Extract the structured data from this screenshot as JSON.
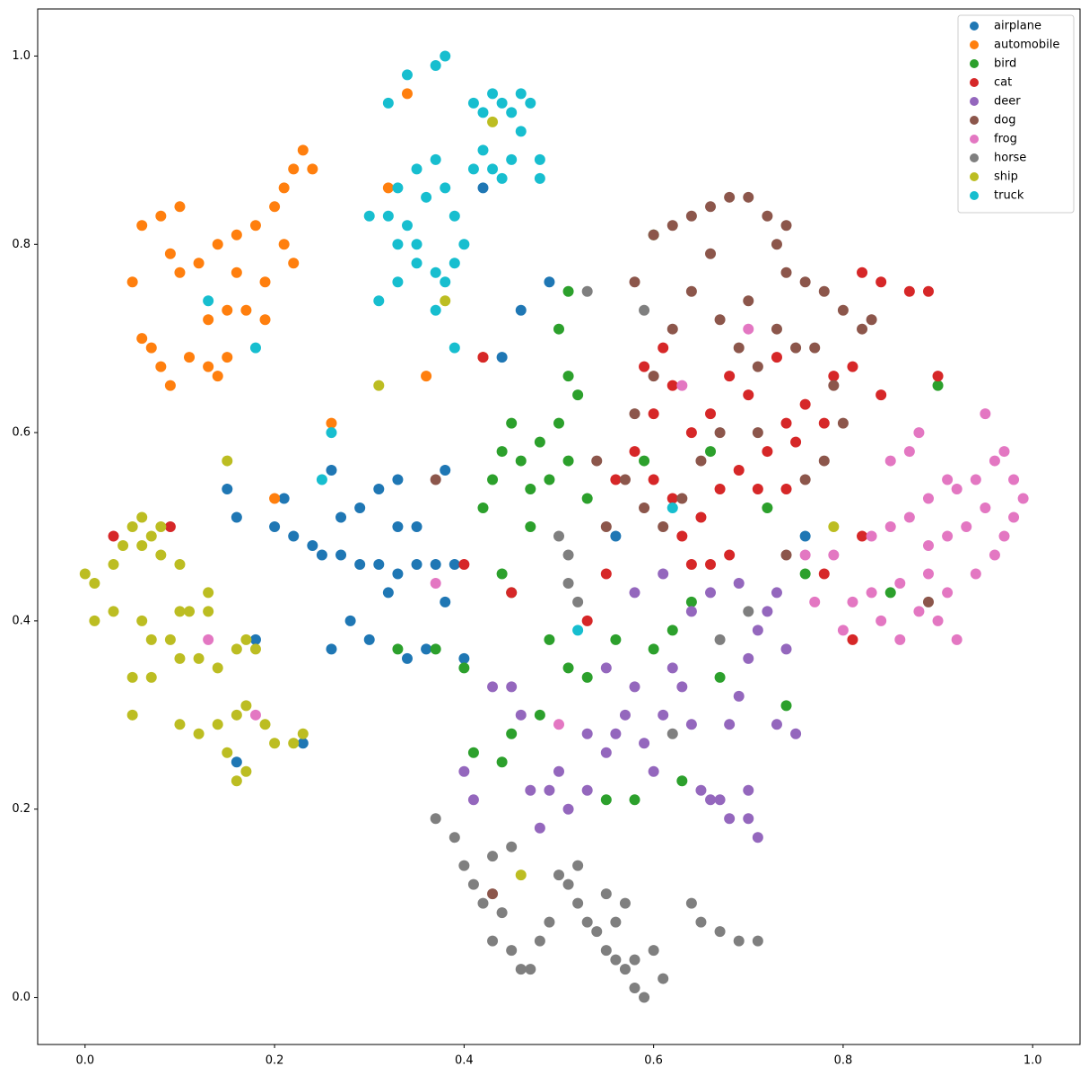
{
  "chart_data": {
    "type": "scatter",
    "xlim": [
      -0.05,
      1.05
    ],
    "ylim": [
      -0.05,
      1.05
    ],
    "xticks": [
      {
        "value": 0,
        "label": "0.0"
      },
      0.2,
      0.4,
      0.6,
      0.8,
      {
        "value": 1,
        "label": "1.0"
      }
    ],
    "yticks": [
      {
        "value": 0,
        "label": "0.0"
      },
      0.2,
      0.4,
      0.6,
      0.8,
      {
        "value": 1,
        "label": "1.0"
      }
    ],
    "legend": "upper right",
    "series": [
      {
        "name": "airplane",
        "color": "#1f77b4",
        "x": [
          0.2,
          0.22,
          0.24,
          0.25,
          0.27,
          0.29,
          0.31,
          0.33,
          0.35,
          0.37,
          0.39,
          0.27,
          0.29,
          0.31,
          0.33,
          0.26,
          0.28,
          0.3,
          0.26,
          0.32,
          0.34,
          0.36,
          0.38,
          0.4,
          0.15,
          0.16,
          0.21,
          0.33,
          0.35,
          0.44,
          0.46,
          0.49,
          0.56,
          0.42,
          0.76,
          0.16,
          0.23,
          0.38,
          0.18
        ],
        "y": [
          0.5,
          0.49,
          0.48,
          0.47,
          0.47,
          0.46,
          0.46,
          0.45,
          0.46,
          0.46,
          0.46,
          0.51,
          0.52,
          0.54,
          0.55,
          0.56,
          0.4,
          0.38,
          0.37,
          0.43,
          0.36,
          0.37,
          0.42,
          0.36,
          0.54,
          0.51,
          0.53,
          0.5,
          0.5,
          0.68,
          0.73,
          0.76,
          0.49,
          0.86,
          0.49,
          0.25,
          0.27,
          0.56,
          0.38
        ]
      },
      {
        "name": "automobile",
        "color": "#ff7f0e",
        "x": [
          0.05,
          0.06,
          0.08,
          0.1,
          0.09,
          0.1,
          0.12,
          0.06,
          0.07,
          0.08,
          0.09,
          0.11,
          0.13,
          0.14,
          0.15,
          0.13,
          0.15,
          0.17,
          0.19,
          0.14,
          0.16,
          0.18,
          0.2,
          0.21,
          0.22,
          0.21,
          0.22,
          0.23,
          0.24,
          0.19,
          0.16,
          0.34,
          0.32,
          0.36,
          0.26,
          0.42,
          0.2
        ],
        "y": [
          0.76,
          0.82,
          0.83,
          0.84,
          0.79,
          0.77,
          0.78,
          0.7,
          0.69,
          0.67,
          0.65,
          0.68,
          0.67,
          0.66,
          0.68,
          0.72,
          0.73,
          0.73,
          0.72,
          0.8,
          0.81,
          0.82,
          0.84,
          0.8,
          0.78,
          0.86,
          0.88,
          0.9,
          0.88,
          0.76,
          0.77,
          0.96,
          0.86,
          0.66,
          0.61,
          0.68,
          0.53
        ]
      },
      {
        "name": "bird",
        "color": "#2ca02c",
        "x": [
          0.42,
          0.43,
          0.44,
          0.45,
          0.46,
          0.47,
          0.48,
          0.49,
          0.5,
          0.51,
          0.52,
          0.51,
          0.5,
          0.51,
          0.44,
          0.45,
          0.47,
          0.49,
          0.51,
          0.53,
          0.4,
          0.41,
          0.44,
          0.45,
          0.48,
          0.56,
          0.6,
          0.62,
          0.64,
          0.63,
          0.58,
          0.55,
          0.33,
          0.37,
          0.67,
          0.72,
          0.76,
          0.9,
          0.85,
          0.53,
          0.59,
          0.66,
          0.74,
          0.6
        ],
        "y": [
          0.52,
          0.55,
          0.58,
          0.61,
          0.57,
          0.54,
          0.59,
          0.55,
          0.61,
          0.57,
          0.64,
          0.66,
          0.71,
          0.75,
          0.45,
          0.43,
          0.5,
          0.38,
          0.35,
          0.34,
          0.35,
          0.26,
          0.25,
          0.28,
          0.3,
          0.38,
          0.37,
          0.39,
          0.42,
          0.23,
          0.21,
          0.21,
          0.37,
          0.37,
          0.34,
          0.52,
          0.45,
          0.65,
          0.43,
          0.53,
          0.57,
          0.58,
          0.31,
          0.81
        ]
      },
      {
        "name": "cat",
        "color": "#d62728",
        "x": [
          0.56,
          0.58,
          0.6,
          0.62,
          0.63,
          0.64,
          0.66,
          0.68,
          0.65,
          0.67,
          0.69,
          0.71,
          0.72,
          0.74,
          0.76,
          0.78,
          0.79,
          0.75,
          0.73,
          0.7,
          0.68,
          0.66,
          0.64,
          0.62,
          0.61,
          0.59,
          0.6,
          0.82,
          0.84,
          0.87,
          0.89,
          0.81,
          0.84,
          0.9,
          0.55,
          0.45,
          0.42,
          0.4,
          0.03,
          0.09,
          0.81,
          0.82,
          0.53,
          0.74,
          0.78
        ],
        "y": [
          0.55,
          0.58,
          0.55,
          0.53,
          0.49,
          0.46,
          0.46,
          0.47,
          0.51,
          0.54,
          0.56,
          0.54,
          0.58,
          0.61,
          0.63,
          0.61,
          0.66,
          0.59,
          0.68,
          0.64,
          0.66,
          0.62,
          0.6,
          0.65,
          0.69,
          0.67,
          0.62,
          0.77,
          0.76,
          0.75,
          0.75,
          0.67,
          0.64,
          0.66,
          0.45,
          0.43,
          0.68,
          0.46,
          0.49,
          0.5,
          0.38,
          0.49,
          0.4,
          0.54,
          0.45
        ]
      },
      {
        "name": "deer",
        "color": "#9467bd",
        "x": [
          0.4,
          0.41,
          0.43,
          0.45,
          0.46,
          0.47,
          0.49,
          0.5,
          0.51,
          0.48,
          0.53,
          0.55,
          0.56,
          0.57,
          0.58,
          0.59,
          0.6,
          0.61,
          0.62,
          0.63,
          0.64,
          0.65,
          0.66,
          0.67,
          0.68,
          0.7,
          0.71,
          0.7,
          0.68,
          0.69,
          0.7,
          0.71,
          0.72,
          0.73,
          0.75,
          0.74,
          0.66,
          0.64,
          0.58,
          0.61,
          0.69,
          0.73,
          0.53,
          0.55
        ],
        "y": [
          0.24,
          0.21,
          0.33,
          0.33,
          0.3,
          0.22,
          0.22,
          0.24,
          0.2,
          0.18,
          0.22,
          0.26,
          0.28,
          0.3,
          0.33,
          0.27,
          0.24,
          0.3,
          0.35,
          0.33,
          0.29,
          0.22,
          0.21,
          0.21,
          0.19,
          0.19,
          0.17,
          0.22,
          0.29,
          0.32,
          0.36,
          0.39,
          0.41,
          0.29,
          0.28,
          0.37,
          0.43,
          0.41,
          0.43,
          0.45,
          0.44,
          0.43,
          0.28,
          0.35
        ]
      },
      {
        "name": "dog",
        "color": "#8c564b",
        "x": [
          0.6,
          0.62,
          0.64,
          0.66,
          0.68,
          0.7,
          0.72,
          0.74,
          0.73,
          0.74,
          0.76,
          0.78,
          0.8,
          0.82,
          0.83,
          0.66,
          0.64,
          0.67,
          0.7,
          0.69,
          0.71,
          0.73,
          0.75,
          0.77,
          0.79,
          0.8,
          0.78,
          0.76,
          0.62,
          0.6,
          0.58,
          0.57,
          0.59,
          0.61,
          0.63,
          0.65,
          0.67,
          0.55,
          0.71,
          0.37,
          0.58,
          0.54,
          0.43,
          0.89,
          0.74
        ],
        "y": [
          0.81,
          0.82,
          0.83,
          0.84,
          0.85,
          0.85,
          0.83,
          0.82,
          0.8,
          0.77,
          0.76,
          0.75,
          0.73,
          0.71,
          0.72,
          0.79,
          0.75,
          0.72,
          0.74,
          0.69,
          0.67,
          0.71,
          0.69,
          0.69,
          0.65,
          0.61,
          0.57,
          0.55,
          0.71,
          0.66,
          0.62,
          0.55,
          0.52,
          0.5,
          0.53,
          0.57,
          0.6,
          0.5,
          0.6,
          0.55,
          0.76,
          0.57,
          0.11,
          0.42,
          0.47
        ]
      },
      {
        "name": "frog",
        "color": "#e377c2",
        "x": [
          0.83,
          0.85,
          0.87,
          0.89,
          0.91,
          0.92,
          0.94,
          0.96,
          0.97,
          0.98,
          0.99,
          0.98,
          0.97,
          0.96,
          0.95,
          0.93,
          0.91,
          0.89,
          0.87,
          0.85,
          0.88,
          0.95,
          0.94,
          0.83,
          0.84,
          0.81,
          0.8,
          0.86,
          0.88,
          0.9,
          0.91,
          0.89,
          0.86,
          0.92,
          0.79,
          0.76,
          0.77,
          0.63,
          0.7,
          0.5,
          0.13,
          0.37,
          0.18
        ],
        "y": [
          0.49,
          0.5,
          0.51,
          0.53,
          0.55,
          0.54,
          0.55,
          0.57,
          0.58,
          0.55,
          0.53,
          0.51,
          0.49,
          0.47,
          0.52,
          0.5,
          0.49,
          0.48,
          0.58,
          0.57,
          0.6,
          0.62,
          0.45,
          0.43,
          0.4,
          0.42,
          0.39,
          0.38,
          0.41,
          0.4,
          0.43,
          0.45,
          0.44,
          0.38,
          0.47,
          0.47,
          0.42,
          0.65,
          0.71,
          0.29,
          0.38,
          0.44,
          0.3
        ]
      },
      {
        "name": "horse",
        "color": "#7f7f7f",
        "x": [
          0.37,
          0.39,
          0.4,
          0.41,
          0.42,
          0.44,
          0.43,
          0.45,
          0.46,
          0.47,
          0.48,
          0.49,
          0.5,
          0.51,
          0.52,
          0.53,
          0.54,
          0.55,
          0.56,
          0.57,
          0.58,
          0.59,
          0.58,
          0.57,
          0.55,
          0.56,
          0.6,
          0.61,
          0.64,
          0.65,
          0.67,
          0.69,
          0.71,
          0.45,
          0.43,
          0.51,
          0.51,
          0.5,
          0.52,
          0.53,
          0.59,
          0.67,
          0.7,
          0.62,
          0.52
        ],
        "y": [
          0.19,
          0.17,
          0.14,
          0.12,
          0.1,
          0.09,
          0.06,
          0.05,
          0.03,
          0.03,
          0.06,
          0.08,
          0.13,
          0.12,
          0.1,
          0.08,
          0.07,
          0.05,
          0.04,
          0.03,
          0.01,
          0.0,
          0.04,
          0.1,
          0.11,
          0.08,
          0.05,
          0.02,
          0.1,
          0.08,
          0.07,
          0.06,
          0.06,
          0.16,
          0.15,
          0.47,
          0.44,
          0.49,
          0.42,
          0.75,
          0.73,
          0.38,
          0.41,
          0.28,
          0.14
        ]
      },
      {
        "name": "ship",
        "color": "#bcbd22",
        "x": [
          0.0,
          0.01,
          0.01,
          0.03,
          0.03,
          0.04,
          0.05,
          0.06,
          0.07,
          0.08,
          0.06,
          0.08,
          0.1,
          0.06,
          0.07,
          0.09,
          0.1,
          0.11,
          0.13,
          0.13,
          0.05,
          0.07,
          0.05,
          0.1,
          0.12,
          0.14,
          0.16,
          0.17,
          0.18,
          0.1,
          0.12,
          0.14,
          0.16,
          0.17,
          0.19,
          0.2,
          0.22,
          0.23,
          0.16,
          0.17,
          0.15,
          0.31,
          0.15,
          0.43,
          0.46,
          0.38,
          0.79
        ],
        "y": [
          0.45,
          0.44,
          0.4,
          0.41,
          0.46,
          0.48,
          0.5,
          0.51,
          0.49,
          0.5,
          0.48,
          0.47,
          0.46,
          0.4,
          0.38,
          0.38,
          0.41,
          0.41,
          0.41,
          0.43,
          0.34,
          0.34,
          0.3,
          0.36,
          0.36,
          0.35,
          0.37,
          0.38,
          0.37,
          0.29,
          0.28,
          0.29,
          0.3,
          0.31,
          0.29,
          0.27,
          0.27,
          0.28,
          0.23,
          0.24,
          0.26,
          0.65,
          0.57,
          0.93,
          0.13,
          0.74,
          0.5
        ]
      },
      {
        "name": "truck",
        "color": "#17becf",
        "x": [
          0.3,
          0.32,
          0.34,
          0.33,
          0.35,
          0.37,
          0.38,
          0.39,
          0.37,
          0.31,
          0.33,
          0.35,
          0.37,
          0.36,
          0.38,
          0.39,
          0.4,
          0.41,
          0.42,
          0.43,
          0.44,
          0.45,
          0.42,
          0.43,
          0.44,
          0.45,
          0.46,
          0.47,
          0.46,
          0.41,
          0.32,
          0.34,
          0.37,
          0.38,
          0.48,
          0.48,
          0.39,
          0.33,
          0.35,
          0.26,
          0.25,
          0.62,
          0.13,
          0.18,
          0.52
        ],
        "y": [
          0.83,
          0.83,
          0.82,
          0.8,
          0.78,
          0.77,
          0.76,
          0.78,
          0.73,
          0.74,
          0.76,
          0.88,
          0.89,
          0.85,
          0.86,
          0.83,
          0.8,
          0.88,
          0.9,
          0.88,
          0.87,
          0.89,
          0.94,
          0.96,
          0.95,
          0.94,
          0.96,
          0.95,
          0.92,
          0.95,
          0.95,
          0.98,
          0.99,
          1.0,
          0.89,
          0.87,
          0.69,
          0.86,
          0.8,
          0.6,
          0.55,
          0.52,
          0.74,
          0.69,
          0.39
        ]
      }
    ]
  }
}
